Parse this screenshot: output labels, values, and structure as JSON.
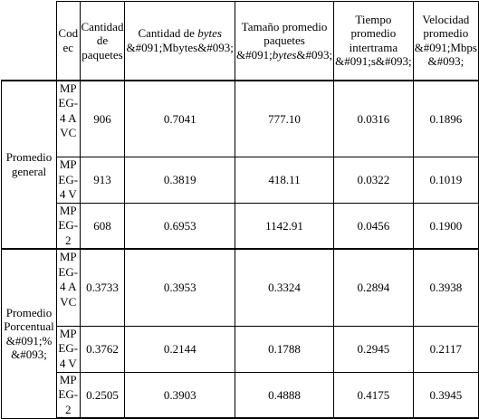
{
  "headers": {
    "codec": "Cod ec",
    "packets": "Cantidad de paquetes",
    "amount_pre": "Cantidad de ",
    "amount_em": "bytes",
    "amount_post": " &#091;Mbytes&#093;",
    "avgsize_pre": "Tamaño promedio paquetes &#091;",
    "avgsize_em": "bytes",
    "avgsize_post": "&#093;",
    "intertime": "Tiempo promedio intertrama &#091;s&#093;",
    "speed": "Velocidad promedio &#091;Mbps &#093;"
  },
  "groups": [
    {
      "label": "Promedio general",
      "rows": [
        {
          "codec": "MPEG-4 AVC",
          "packets": "906",
          "amount": "0.7041",
          "size": "777.10",
          "time": "0.0316",
          "speed": "0.1896"
        },
        {
          "codec": "MPEG-4 V",
          "packets": "913",
          "amount": "0.3819",
          "size": "418.11",
          "time": "0.0322",
          "speed": "0.1019"
        },
        {
          "codec": "MPEG-2",
          "packets": "608",
          "amount": "0.6953",
          "size": "1142.91",
          "time": "0.0456",
          "speed": "0.1900"
        }
      ]
    },
    {
      "label": "Promedio Porcentual &#091;% &#093;",
      "rows": [
        {
          "codec": "MPEG-4 AVC",
          "packets": "0.3733",
          "amount": "0.3953",
          "size": "0.3324",
          "time": "0.2894",
          "speed": "0.3938"
        },
        {
          "codec": "MPEG-4 V",
          "packets": "0.3762",
          "amount": "0.2144",
          "size": "0.1788",
          "time": "0.2945",
          "speed": "0.2117"
        },
        {
          "codec": "MPEG-2",
          "packets": "0.2505",
          "amount": "0.3903",
          "size": "0.4888",
          "time": "0.4175",
          "speed": "0.3945"
        }
      ]
    }
  ]
}
